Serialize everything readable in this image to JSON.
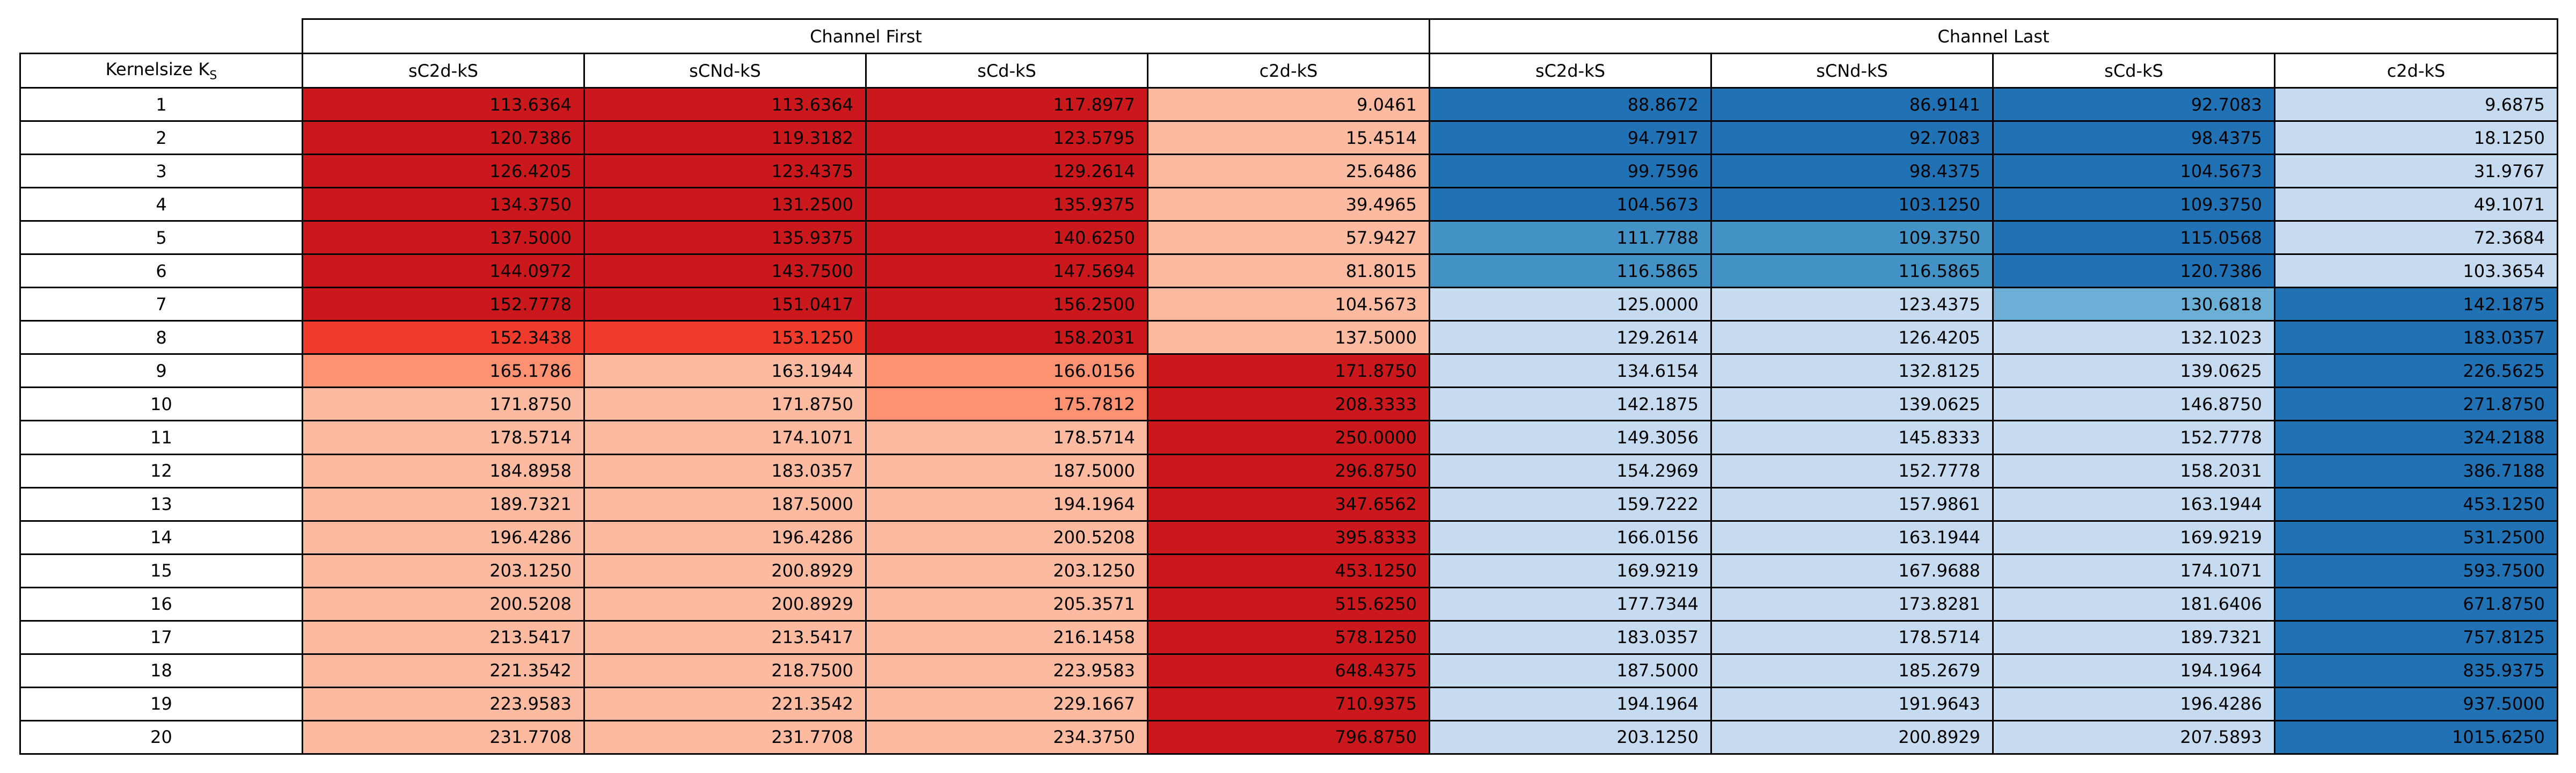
{
  "table": {
    "groups": [
      "Channel First",
      "Channel Last"
    ],
    "kernel_header": "Kernelsize K",
    "kernel_subscript": "S",
    "columns": [
      "sC2d-kS",
      "sCNd-kS",
      "sCd-kS",
      "c2d-kS",
      "sC2d-kS",
      "sCNd-kS",
      "sCd-kS",
      "c2d-kS"
    ]
  },
  "colors": {
    "dark_red": "#cb181d",
    "mid_red": "#ef3b2c",
    "salmon": "#fc9272",
    "light_red": "#fcbba1",
    "dark_blue": "#2171b5",
    "mid_blue": "#4292c6",
    "sky_blue": "#6baed6",
    "light_blue": "#c6dbef",
    "text": "#000000",
    "border": "#000000"
  },
  "chart_data": {
    "type": "table",
    "title": "",
    "column_groups": [
      {
        "name": "Channel First",
        "columns": [
          "sC2d-kS",
          "sCNd-kS",
          "sCd-kS",
          "c2d-kS"
        ]
      },
      {
        "name": "Channel Last",
        "columns": [
          "sC2d-kS",
          "sCNd-kS",
          "sCd-kS",
          "c2d-kS"
        ]
      }
    ],
    "row_header": "Kernelsize K_S",
    "rows": [
      {
        "ks": "1",
        "values": [
          "113.6364",
          "113.6364",
          "117.8977",
          "9.0461",
          "88.8672",
          "86.9141",
          "92.7083",
          "9.6875"
        ],
        "colors": [
          "dark_red",
          "dark_red",
          "dark_red",
          "light_red",
          "dark_blue",
          "dark_blue",
          "dark_blue",
          "light_blue"
        ]
      },
      {
        "ks": "2",
        "values": [
          "120.7386",
          "119.3182",
          "123.5795",
          "15.4514",
          "94.7917",
          "92.7083",
          "98.4375",
          "18.1250"
        ],
        "colors": [
          "dark_red",
          "dark_red",
          "dark_red",
          "light_red",
          "dark_blue",
          "dark_blue",
          "dark_blue",
          "light_blue"
        ]
      },
      {
        "ks": "3",
        "values": [
          "126.4205",
          "123.4375",
          "129.2614",
          "25.6486",
          "99.7596",
          "98.4375",
          "104.5673",
          "31.9767"
        ],
        "colors": [
          "dark_red",
          "dark_red",
          "dark_red",
          "light_red",
          "dark_blue",
          "dark_blue",
          "dark_blue",
          "light_blue"
        ]
      },
      {
        "ks": "4",
        "values": [
          "134.3750",
          "131.2500",
          "135.9375",
          "39.4965",
          "104.5673",
          "103.1250",
          "109.3750",
          "49.1071"
        ],
        "colors": [
          "dark_red",
          "dark_red",
          "dark_red",
          "light_red",
          "dark_blue",
          "dark_blue",
          "dark_blue",
          "light_blue"
        ]
      },
      {
        "ks": "5",
        "values": [
          "137.5000",
          "135.9375",
          "140.6250",
          "57.9427",
          "111.7788",
          "109.3750",
          "115.0568",
          "72.3684"
        ],
        "colors": [
          "dark_red",
          "dark_red",
          "dark_red",
          "light_red",
          "mid_blue",
          "mid_blue",
          "dark_blue",
          "light_blue"
        ]
      },
      {
        "ks": "6",
        "values": [
          "144.0972",
          "143.7500",
          "147.5694",
          "81.8015",
          "116.5865",
          "116.5865",
          "120.7386",
          "103.3654"
        ],
        "colors": [
          "dark_red",
          "dark_red",
          "dark_red",
          "light_red",
          "mid_blue",
          "mid_blue",
          "dark_blue",
          "light_blue"
        ]
      },
      {
        "ks": "7",
        "values": [
          "152.7778",
          "151.0417",
          "156.2500",
          "104.5673",
          "125.0000",
          "123.4375",
          "130.6818",
          "142.1875"
        ],
        "colors": [
          "dark_red",
          "dark_red",
          "dark_red",
          "light_red",
          "light_blue",
          "light_blue",
          "sky_blue",
          "dark_blue"
        ]
      },
      {
        "ks": "8",
        "values": [
          "152.3438",
          "153.1250",
          "158.2031",
          "137.5000",
          "129.2614",
          "126.4205",
          "132.1023",
          "183.0357"
        ],
        "colors": [
          "mid_red",
          "mid_red",
          "dark_red",
          "light_red",
          "light_blue",
          "light_blue",
          "light_blue",
          "dark_blue"
        ]
      },
      {
        "ks": "9",
        "values": [
          "165.1786",
          "163.1944",
          "166.0156",
          "171.8750",
          "134.6154",
          "132.8125",
          "139.0625",
          "226.5625"
        ],
        "colors": [
          "salmon",
          "light_red",
          "salmon",
          "dark_red",
          "light_blue",
          "light_blue",
          "light_blue",
          "dark_blue"
        ]
      },
      {
        "ks": "10",
        "values": [
          "171.8750",
          "171.8750",
          "175.7812",
          "208.3333",
          "142.1875",
          "139.0625",
          "146.8750",
          "271.8750"
        ],
        "colors": [
          "light_red",
          "light_red",
          "salmon",
          "dark_red",
          "light_blue",
          "light_blue",
          "light_blue",
          "dark_blue"
        ]
      },
      {
        "ks": "11",
        "values": [
          "178.5714",
          "174.1071",
          "178.5714",
          "250.0000",
          "149.3056",
          "145.8333",
          "152.7778",
          "324.2188"
        ],
        "colors": [
          "light_red",
          "light_red",
          "light_red",
          "dark_red",
          "light_blue",
          "light_blue",
          "light_blue",
          "dark_blue"
        ]
      },
      {
        "ks": "12",
        "values": [
          "184.8958",
          "183.0357",
          "187.5000",
          "296.8750",
          "154.2969",
          "152.7778",
          "158.2031",
          "386.7188"
        ],
        "colors": [
          "light_red",
          "light_red",
          "light_red",
          "dark_red",
          "light_blue",
          "light_blue",
          "light_blue",
          "dark_blue"
        ]
      },
      {
        "ks": "13",
        "values": [
          "189.7321",
          "187.5000",
          "194.1964",
          "347.6562",
          "159.7222",
          "157.9861",
          "163.1944",
          "453.1250"
        ],
        "colors": [
          "light_red",
          "light_red",
          "light_red",
          "dark_red",
          "light_blue",
          "light_blue",
          "light_blue",
          "dark_blue"
        ]
      },
      {
        "ks": "14",
        "values": [
          "196.4286",
          "196.4286",
          "200.5208",
          "395.8333",
          "166.0156",
          "163.1944",
          "169.9219",
          "531.2500"
        ],
        "colors": [
          "light_red",
          "light_red",
          "light_red",
          "dark_red",
          "light_blue",
          "light_blue",
          "light_blue",
          "dark_blue"
        ]
      },
      {
        "ks": "15",
        "values": [
          "203.1250",
          "200.8929",
          "203.1250",
          "453.1250",
          "169.9219",
          "167.9688",
          "174.1071",
          "593.7500"
        ],
        "colors": [
          "light_red",
          "light_red",
          "light_red",
          "dark_red",
          "light_blue",
          "light_blue",
          "light_blue",
          "dark_blue"
        ]
      },
      {
        "ks": "16",
        "values": [
          "200.5208",
          "200.8929",
          "205.3571",
          "515.6250",
          "177.7344",
          "173.8281",
          "181.6406",
          "671.8750"
        ],
        "colors": [
          "light_red",
          "light_red",
          "light_red",
          "dark_red",
          "light_blue",
          "light_blue",
          "light_blue",
          "dark_blue"
        ]
      },
      {
        "ks": "17",
        "values": [
          "213.5417",
          "213.5417",
          "216.1458",
          "578.1250",
          "183.0357",
          "178.5714",
          "189.7321",
          "757.8125"
        ],
        "colors": [
          "light_red",
          "light_red",
          "light_red",
          "dark_red",
          "light_blue",
          "light_blue",
          "light_blue",
          "dark_blue"
        ]
      },
      {
        "ks": "18",
        "values": [
          "221.3542",
          "218.7500",
          "223.9583",
          "648.4375",
          "187.5000",
          "185.2679",
          "194.1964",
          "835.9375"
        ],
        "colors": [
          "light_red",
          "light_red",
          "light_red",
          "dark_red",
          "light_blue",
          "light_blue",
          "light_blue",
          "dark_blue"
        ]
      },
      {
        "ks": "19",
        "values": [
          "223.9583",
          "221.3542",
          "229.1667",
          "710.9375",
          "194.1964",
          "191.9643",
          "196.4286",
          "937.5000"
        ],
        "colors": [
          "light_red",
          "light_red",
          "light_red",
          "dark_red",
          "light_blue",
          "light_blue",
          "light_blue",
          "dark_blue"
        ]
      },
      {
        "ks": "20",
        "values": [
          "231.7708",
          "231.7708",
          "234.3750",
          "796.8750",
          "203.1250",
          "200.8929",
          "207.5893",
          "1015.6250"
        ],
        "colors": [
          "light_red",
          "light_red",
          "light_red",
          "dark_red",
          "light_blue",
          "light_blue",
          "light_blue",
          "dark_blue"
        ]
      }
    ]
  }
}
